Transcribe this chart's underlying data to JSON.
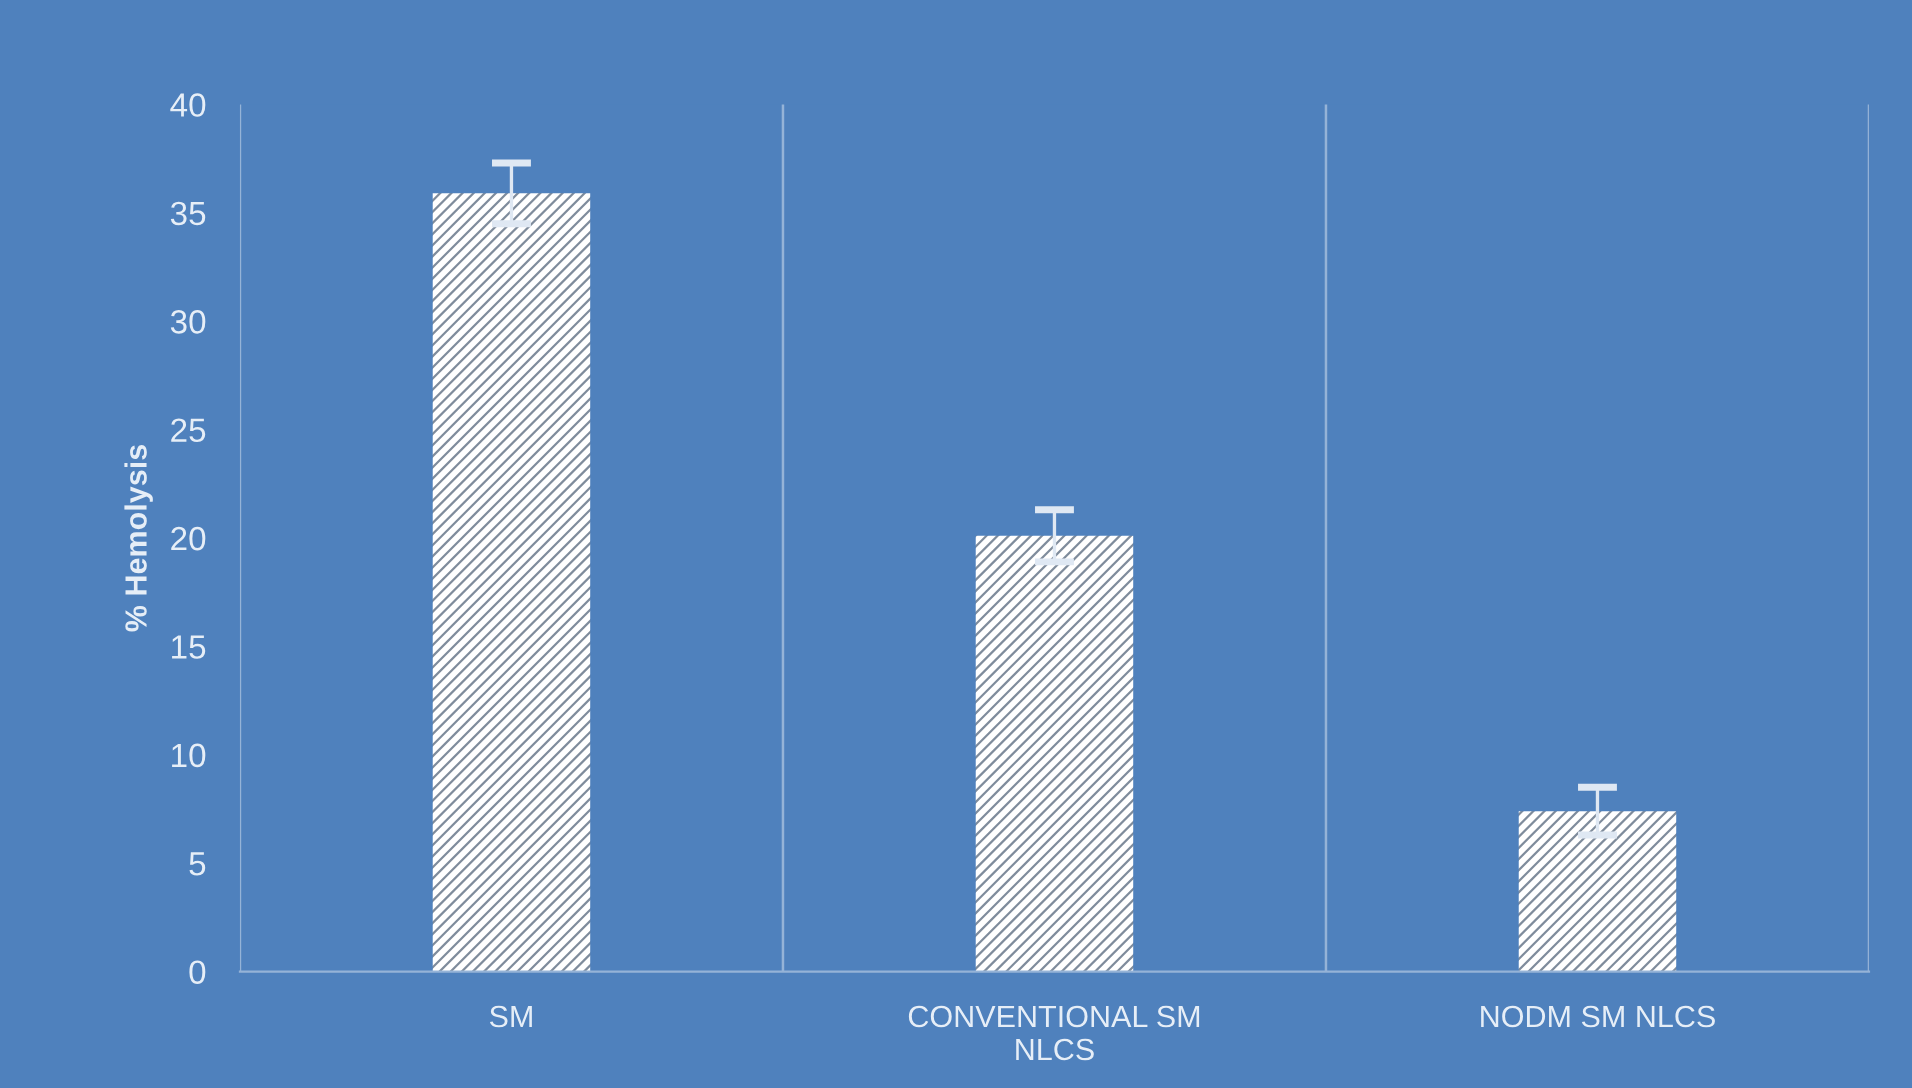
{
  "chart_data": {
    "type": "bar",
    "ylabel": "% Hemolysis",
    "categories": [
      "SM",
      "CONVENTIONAL SM NLCS",
      "NODM SM NLCS"
    ],
    "values": [
      35.9,
      20.1,
      7.4
    ],
    "errors": [
      1.4,
      1.2,
      1.1
    ],
    "color": "#ffffff",
    "ylim": [
      0,
      40
    ],
    "yticks": [
      0,
      5,
      10,
      15,
      20,
      25,
      30,
      35,
      40
    ],
    "grid": "x",
    "legend": false
  }
}
